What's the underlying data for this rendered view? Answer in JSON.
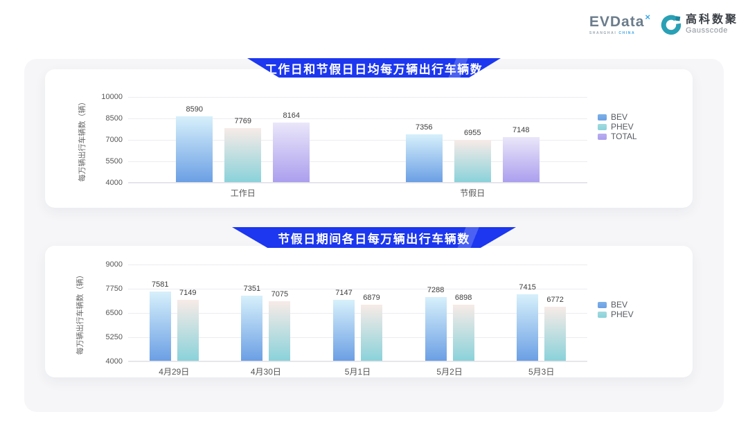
{
  "logos": {
    "evdata": {
      "wordmark": "EVData",
      "sup": "×",
      "sub_left": "SHANGHAI",
      "sub_right": "CHINA"
    },
    "gausscode": {
      "cn": "高科数聚",
      "en": "Gausscode",
      "icon_color": "#2aa0b5"
    }
  },
  "colors": {
    "banner_blue": "#1c37ef",
    "panel_gray": "#f6f6f8",
    "gridline": "#ececf1"
  },
  "chart_data": [
    {
      "type": "bar",
      "title": "工作日和节假日日均每万辆出行车辆数",
      "ylabel": "每万辆出行车辆数（辆）",
      "xlabel": "",
      "ylim": [
        4000,
        10000
      ],
      "yticks": [
        4000,
        5500,
        7000,
        8500,
        10000
      ],
      "grid": true,
      "legend_position": "right",
      "categories": [
        "工作日",
        "节假日"
      ],
      "series": [
        {
          "name": "BEV",
          "values": [
            8590,
            7356
          ],
          "gradient": [
            "#d7f0fb",
            "#6b9fe4"
          ],
          "legend_color": "#7cb1e8"
        },
        {
          "name": "PHEV",
          "values": [
            7769,
            6955
          ],
          "gradient": [
            "#f7ebe7",
            "#8ad2da"
          ],
          "legend_color": "#a2dade"
        },
        {
          "name": "TOTAL",
          "values": [
            8164,
            7148
          ],
          "gradient": [
            "#eae6f9",
            "#ab9fee"
          ],
          "legend_color": "#b9adf0"
        }
      ]
    },
    {
      "type": "bar",
      "title": "节假日期间各日每万辆出行车辆数",
      "ylabel": "每万辆出行车辆数（辆）",
      "xlabel": "",
      "ylim": [
        4000,
        9000
      ],
      "yticks": [
        4000,
        5250,
        6500,
        7750,
        9000
      ],
      "grid": true,
      "legend_position": "right",
      "categories": [
        "4月29日",
        "4月30日",
        "5月1日",
        "5月2日",
        "5月3日"
      ],
      "series": [
        {
          "name": "BEV",
          "values": [
            7581,
            7351,
            7147,
            7288,
            7415
          ],
          "gradient": [
            "#d7f0fb",
            "#6b9fe4"
          ],
          "legend_color": "#7cb1e8"
        },
        {
          "name": "PHEV",
          "values": [
            7149,
            7075,
            6879,
            6898,
            6772
          ],
          "gradient": [
            "#f7ebe7",
            "#8ad2da"
          ],
          "legend_color": "#a2dade"
        }
      ]
    }
  ]
}
